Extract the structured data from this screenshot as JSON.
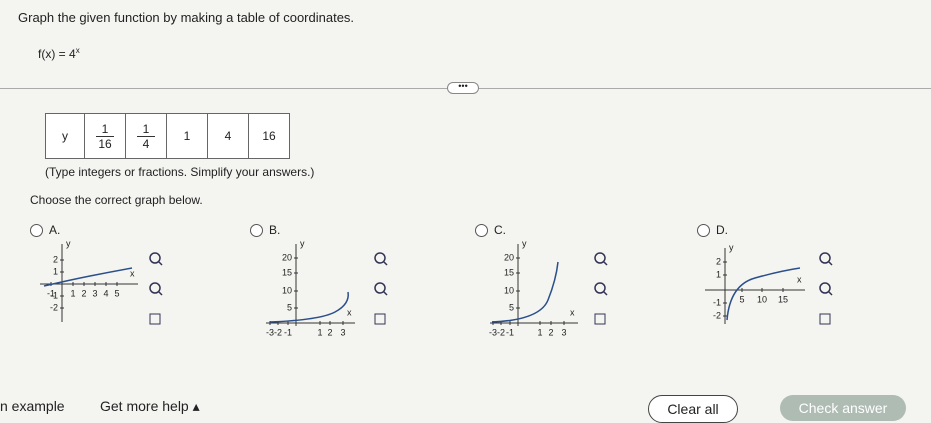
{
  "question": "Graph the given function by making a table of coordinates.",
  "function": {
    "lhs": "f(x) = 4",
    "exponent": "x"
  },
  "table": {
    "row_label": "y",
    "cells": [
      [
        "1",
        "16"
      ],
      [
        "1",
        "4"
      ],
      [
        "1"
      ],
      [
        "4"
      ],
      [
        "16"
      ]
    ]
  },
  "hint": "(Type integers or fractions. Simplify your answers.)",
  "prompt": "Choose the correct graph below.",
  "options": [
    {
      "label": "A.",
      "graph": {
        "x_axis": "x",
        "y_axis": "y",
        "x_ticks": [
          "-1",
          "1",
          "2",
          "3",
          "4",
          "5"
        ],
        "y_ticks": [
          "2",
          "1",
          "-1",
          "-2"
        ]
      }
    },
    {
      "label": "B.",
      "graph": {
        "x_axis": "x",
        "y_axis": "y",
        "x_ticks": [
          "-3",
          "-2",
          "-1",
          "1",
          "2",
          "3"
        ],
        "y_ticks": [
          "20",
          "15",
          "10",
          "5"
        ]
      }
    },
    {
      "label": "C.",
      "graph": {
        "x_axis": "x",
        "y_axis": "y",
        "x_ticks": [
          "-3",
          "-2",
          "-1",
          "1",
          "2",
          "3"
        ],
        "y_ticks": [
          "20",
          "15",
          "10",
          "5"
        ]
      }
    },
    {
      "label": "D.",
      "graph": {
        "x_axis": "x",
        "y_axis": "y",
        "x_ticks": [
          "5",
          "10",
          "15"
        ],
        "y_ticks": [
          "2",
          "1",
          "-1",
          "-2"
        ]
      }
    }
  ],
  "footer": {
    "example": "n example",
    "help": "Get more help",
    "clear": "Clear all",
    "check": "Check answer"
  }
}
